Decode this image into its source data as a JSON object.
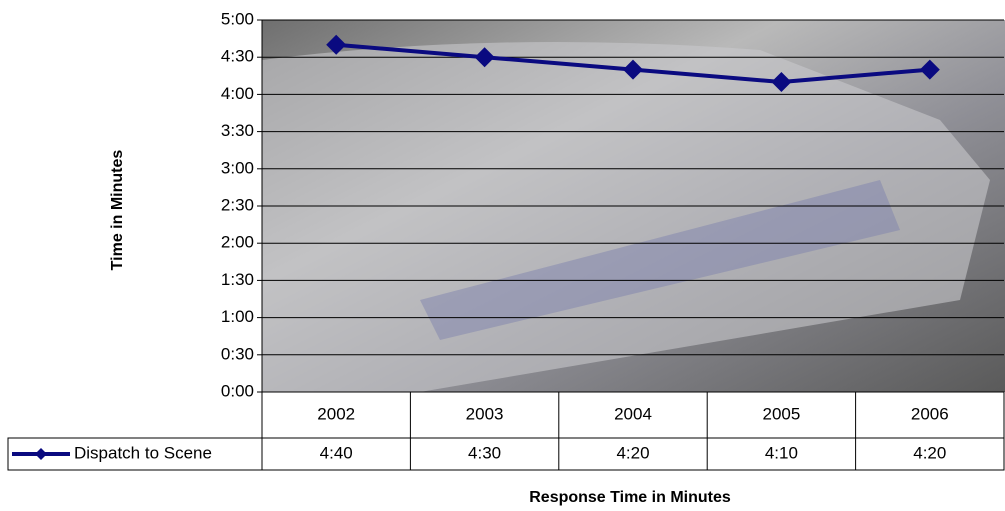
{
  "chart_data": {
    "type": "line",
    "x_axis_label": "Response Time in Minutes",
    "y_axis_label": "Time in Minutes",
    "categories": [
      "2002",
      "2003",
      "2004",
      "2005",
      "2006"
    ],
    "series": [
      {
        "name": "Dispatch to Scene",
        "color": "#0a0a80",
        "values": [
          280,
          270,
          260,
          250,
          260
        ],
        "value_labels": [
          "4:40",
          "4:30",
          "4:20",
          "4:10",
          "4:20"
        ]
      }
    ],
    "ylim": [
      0,
      300
    ],
    "yticks": [
      {
        "value": 0,
        "label": "0:00"
      },
      {
        "value": 30,
        "label": "0:30"
      },
      {
        "value": 60,
        "label": "1:00"
      },
      {
        "value": 90,
        "label": "1:30"
      },
      {
        "value": 120,
        "label": "2:00"
      },
      {
        "value": 150,
        "label": "2:30"
      },
      {
        "value": 180,
        "label": "3:00"
      },
      {
        "value": 210,
        "label": "3:30"
      },
      {
        "value": 240,
        "label": "4:00"
      },
      {
        "value": 270,
        "label": "4:30"
      },
      {
        "value": 300,
        "label": "5:00"
      }
    ],
    "grid": true
  }
}
